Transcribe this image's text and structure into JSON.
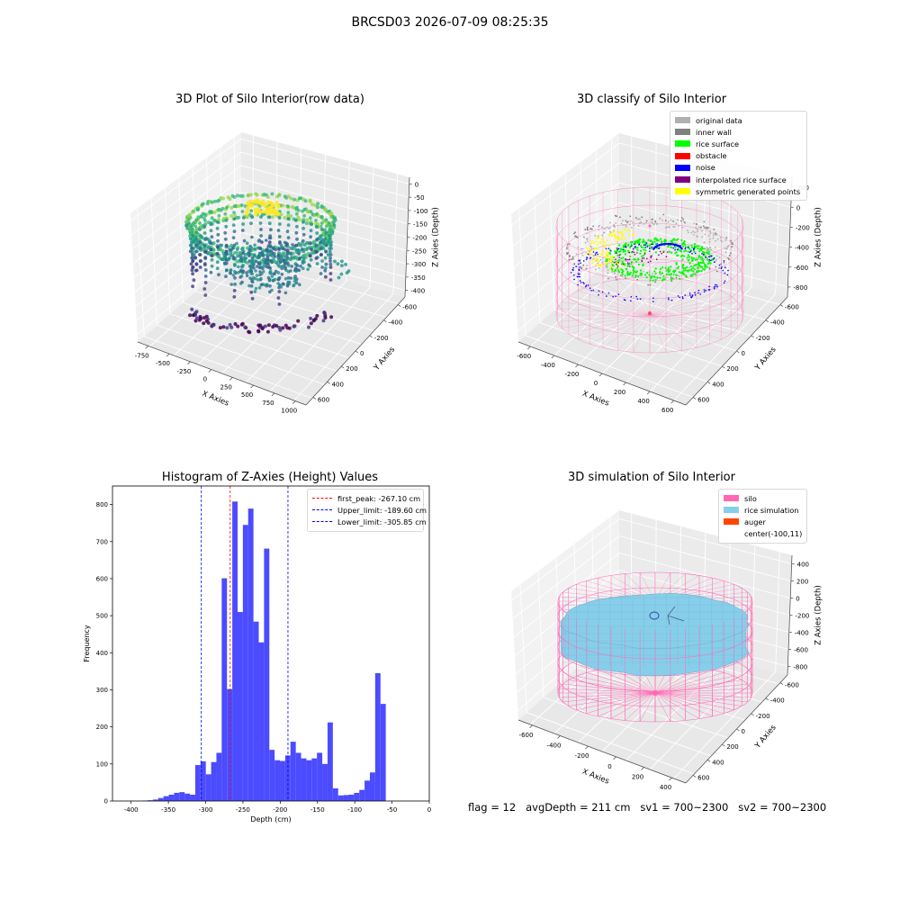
{
  "suptitle": "BRCSD03 2026-07-09 08:25:35",
  "caption": "flag = 12   avgDepth = 211 cm   sv1 = 700~2300   sv2 = 700~2300",
  "chart_data": [
    {
      "type": "scatter3d",
      "title": "3D Plot of Silo Interior(row data)",
      "xlabel": "X Axies",
      "ylabel": "Y Axies",
      "zlabel": "Z Axies (Depth)",
      "xticks": [
        "-750",
        "-500",
        "-250",
        "0",
        "250",
        "500",
        "750",
        "1000"
      ],
      "yticks": [
        "-600",
        "-400",
        "-200",
        "0",
        "200",
        "400",
        "600"
      ],
      "zticks": [
        "0",
        "-50",
        "-100",
        "-150",
        "-200",
        "-250",
        "-300",
        "-350",
        "-400"
      ],
      "xlim": [
        -800,
        1000
      ],
      "ylim": [
        -650,
        650
      ],
      "zlim": [
        -420,
        0
      ],
      "colormap": "viridis"
    },
    {
      "type": "scatter3d",
      "title": "3D classify of Silo Interior",
      "xlabel": "X Axies",
      "ylabel": "Y Axies",
      "zlabel": "Z Axies (Depth)",
      "xticks": [
        "-600",
        "-400",
        "-200",
        "0",
        "200",
        "400",
        "600"
      ],
      "yticks": [
        "-600",
        "-400",
        "-200",
        "0",
        "200",
        "400",
        "600"
      ],
      "zticks": [
        "200",
        "0",
        "-200",
        "-400",
        "-600",
        "-800"
      ],
      "legend": [
        {
          "label": "original data",
          "color": "#b0b0b0"
        },
        {
          "label": "inner wall",
          "color": "#808080"
        },
        {
          "label": "rice surface",
          "color": "#00ff00"
        },
        {
          "label": "obstacle",
          "color": "#ff0000"
        },
        {
          "label": "noise",
          "color": "#0000ff"
        },
        {
          "label": "interpolated rice surface",
          "color": "#800080"
        },
        {
          "label": "symmetric generated points",
          "color": "#ffff00"
        }
      ],
      "silo_color": "#ff69b4"
    },
    {
      "type": "bar",
      "title": "Histogram of Z-Axies (Height) Values",
      "xlabel": "Depth (cm)",
      "ylabel": "Frequency",
      "xlim": [
        -425,
        0
      ],
      "ylim": [
        0,
        850
      ],
      "xticks": [
        "-400",
        "-350",
        "-300",
        "-250",
        "-200",
        "-150",
        "-100",
        "-50",
        "0"
      ],
      "yticks": [
        "0",
        "100",
        "200",
        "300",
        "400",
        "500",
        "600",
        "700",
        "800"
      ],
      "bin_start": -385,
      "bin_width": 7.1,
      "values": [
        1,
        2,
        4,
        8,
        13,
        17,
        22,
        24,
        20,
        17,
        97,
        107,
        72,
        105,
        130,
        601,
        302,
        808,
        510,
        745,
        789,
        484,
        428,
        681,
        138,
        110,
        108,
        123,
        160,
        130,
        115,
        110,
        115,
        130,
        100,
        212,
        34,
        15,
        16,
        17,
        22,
        30,
        55,
        77,
        345,
        262
      ],
      "bar_color": "#4b4bff",
      "lines": [
        {
          "label": "first_peak: -267.10 cm",
          "x": -267.1,
          "color": "#ff0000"
        },
        {
          "label": "Upper_limit: -189.60 cm",
          "x": -189.6,
          "color": "#0000ff"
        },
        {
          "label": "Lower_limit: -305.85 cm",
          "x": -305.85,
          "color": "#0000ff"
        }
      ]
    },
    {
      "type": "surface3d",
      "title": "3D simulation of Silo Interior",
      "xlabel": "X Axies",
      "ylabel": "Y Axies",
      "zlabel": "Z Axies (Depth)",
      "xticks": [
        "-600",
        "-400",
        "-200",
        "0",
        "200",
        "400"
      ],
      "yticks": [
        "-600",
        "-400",
        "-200",
        "0",
        "200",
        "400",
        "600"
      ],
      "zticks": [
        "400",
        "200",
        "0",
        "-200",
        "-400",
        "-600",
        "-800"
      ],
      "legend": [
        {
          "label": "silo",
          "color": "#ff69b4"
        },
        {
          "label": "rice simulation",
          "color": "#87ceeb"
        },
        {
          "label": "auger",
          "color": "#ff4500"
        },
        {
          "label": "center(-100,11)",
          "color": ""
        }
      ]
    }
  ]
}
